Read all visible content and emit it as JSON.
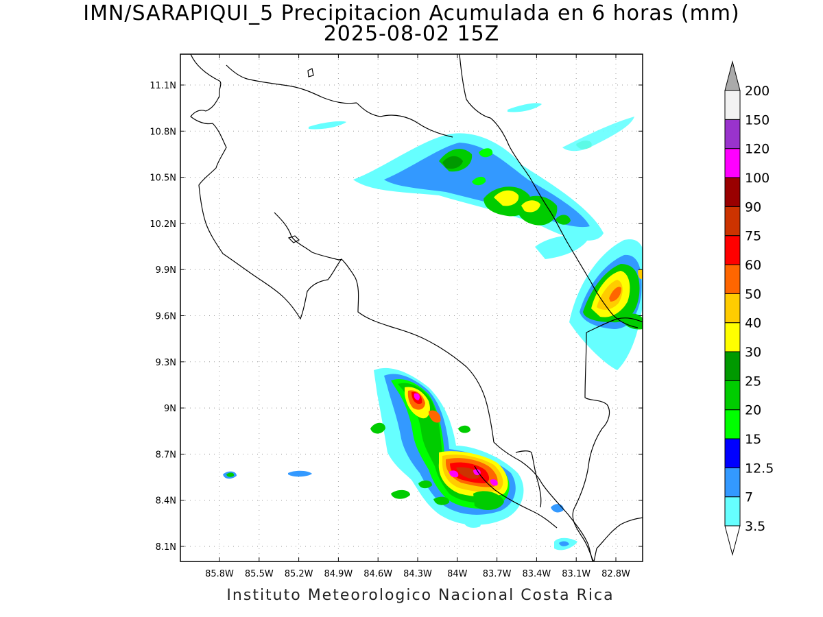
{
  "title_line1": "IMN/SARAPIQUI_5 Precipitacion Acumulada en 6 horas (mm)",
  "title_line2": "2025-08-02 15Z",
  "credit": "Instituto Meteorologico Nacional Costa Rica",
  "lon_labels": [
    "85.8W",
    "85.5W",
    "85.2W",
    "84.9W",
    "84.6W",
    "84.3W",
    "84W",
    "83.7W",
    "83.4W",
    "83.1W",
    "82.8W"
  ],
  "lat_labels": [
    "11.1N",
    "10.8N",
    "10.5N",
    "10.2N",
    "9.9N",
    "9.6N",
    "9.3N",
    "9N",
    "8.7N",
    "8.4N",
    "8.1N"
  ],
  "colorbar": {
    "labels": [
      "3.5",
      "7",
      "12.5",
      "15",
      "20",
      "25",
      "30",
      "40",
      "50",
      "60",
      "75",
      "90",
      "100",
      "120",
      "150",
      "200"
    ],
    "colors": [
      "#66ffff",
      "#3399ff",
      "#0000ff",
      "#00ff00",
      "#00cc00",
      "#009900",
      "#ffff00",
      "#ffcc00",
      "#ff6600",
      "#ff0000",
      "#cc3300",
      "#990000",
      "#ff00ff",
      "#9933cc",
      "#f2f2f2",
      "#aaaaaa"
    ]
  }
}
